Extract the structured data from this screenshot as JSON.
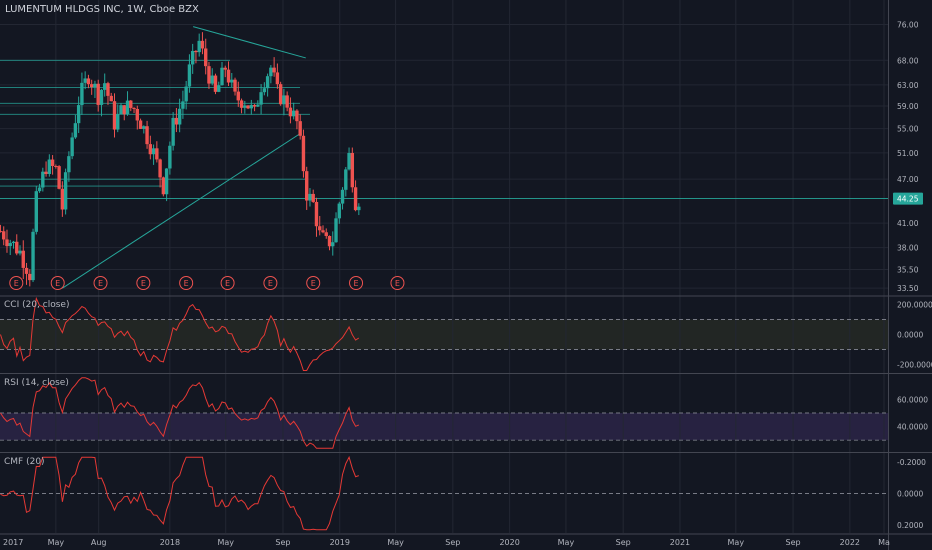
{
  "header": {
    "symbol_title": "LUMENTUM HLDGS INC, 1W, Cboe BZX"
  },
  "colors": {
    "background": "#131722",
    "grid": "#232733",
    "up": "#26a69a",
    "down": "#ef5350",
    "indicator_line": "#e53935",
    "trendline": "#26a69a",
    "price_tag": "#26a69a",
    "cci_band": "#2a2e25",
    "rsi_band": "#2a2445"
  },
  "price_axis": {
    "labels": [
      "76.00",
      "68.00",
      "63.00",
      "59.00",
      "55.00",
      "51.00",
      "47.00",
      "44.25",
      "41.00",
      "38.00",
      "35.50",
      "33.50"
    ],
    "current_price": "44.25"
  },
  "time_axis": {
    "labels": [
      "2017",
      "May",
      "Aug",
      "2018",
      "May",
      "Sep",
      "2019",
      "May",
      "Sep",
      "2020",
      "May",
      "Sep",
      "2021",
      "May",
      "Sep",
      "2022",
      "Ma"
    ]
  },
  "events": {
    "marker": "E",
    "count": 10
  },
  "panes": [
    {
      "name": "cci",
      "label": "CCI (20, close)",
      "axis": [
        "200.0000",
        "0.0000",
        "-200.0000"
      ]
    },
    {
      "name": "rsi",
      "label": "RSI (14, close)",
      "axis": [
        "60.0000",
        "40.0000"
      ]
    },
    {
      "name": "cmf",
      "label": "CMF (20)",
      "axis": [
        "-0.2000",
        "0.0000",
        "0.2000"
      ]
    }
  ],
  "chart_data": {
    "type": "candlestick",
    "title": "LUMENTUM HLDGS INC, 1W, Cboe BZX",
    "interval": "1W",
    "x_range": [
      "2017-01",
      "2022-03"
    ],
    "y_scale": "log",
    "ylim": [
      33,
      80
    ],
    "last_close": 44.25,
    "x_ticks": [
      "2017",
      "May",
      "Aug",
      "2018",
      "May",
      "Sep",
      "2019",
      "May",
      "Sep",
      "2020",
      "May",
      "Sep",
      "2021",
      "May",
      "Sep",
      "2022",
      "Ma"
    ],
    "y_ticks": [
      76.0,
      68.0,
      63.0,
      59.0,
      55.0,
      51.0,
      47.0,
      44.25,
      41.0,
      38.0,
      35.5,
      33.5
    ],
    "anchors": [
      [
        "2017-01-02",
        40.0
      ],
      [
        "2017-02-13",
        37.5
      ],
      [
        "2017-03-06",
        35.0
      ],
      [
        "2017-03-20",
        44.0
      ],
      [
        "2017-04-10",
        49.0
      ],
      [
        "2017-05-01",
        48.5
      ],
      [
        "2017-05-15",
        43.0
      ],
      [
        "2017-05-29",
        50.5
      ],
      [
        "2017-06-19",
        60.0
      ],
      [
        "2017-07-10",
        65.0
      ],
      [
        "2017-07-31",
        61.0
      ],
      [
        "2017-08-14",
        63.5
      ],
      [
        "2017-09-04",
        56.0
      ],
      [
        "2017-09-25",
        59.0
      ],
      [
        "2017-10-16",
        58.5
      ],
      [
        "2017-11-06",
        55.0
      ],
      [
        "2017-11-27",
        51.0
      ],
      [
        "2017-12-18",
        46.0
      ],
      [
        "2018-01-08",
        55.5
      ],
      [
        "2018-01-29",
        60.0
      ],
      [
        "2018-02-12",
        66.0
      ],
      [
        "2018-03-05",
        72.0
      ],
      [
        "2018-03-19",
        67.0
      ],
      [
        "2018-04-09",
        61.0
      ],
      [
        "2018-04-30",
        66.5
      ],
      [
        "2018-05-21",
        60.5
      ],
      [
        "2018-06-11",
        60.0
      ],
      [
        "2018-07-02",
        57.5
      ],
      [
        "2018-07-16",
        63.0
      ],
      [
        "2018-08-06",
        66.5
      ],
      [
        "2018-08-20",
        61.5
      ],
      [
        "2018-09-10",
        59.5
      ],
      [
        "2018-10-01",
        56.0
      ],
      [
        "2018-10-22",
        45.0
      ],
      [
        "2018-11-05",
        43.5
      ],
      [
        "2018-11-19",
        39.5
      ],
      [
        "2018-12-03",
        38.5
      ],
      [
        "2018-12-17",
        39.0
      ],
      [
        "2019-01-07",
        46.0
      ],
      [
        "2019-01-21",
        50.5
      ],
      [
        "2019-02-04",
        44.0
      ],
      [
        "2019-02-11",
        44.25
      ]
    ],
    "indicators": {
      "cci": {
        "name": "CCI (20, close)",
        "ylim": [
          -250,
          250
        ],
        "levels": [
          100,
          -100
        ],
        "ticks": [
          200,
          0,
          -200
        ]
      },
      "rsi": {
        "name": "RSI (14, close)",
        "ylim": [
          22,
          78
        ],
        "levels": [
          70,
          30
        ],
        "ticks": [
          60,
          40
        ]
      },
      "cmf": {
        "name": "CMF (20)",
        "ylim": [
          -0.25,
          0.25
        ],
        "inverted": true,
        "ticks": [
          -0.2,
          0,
          0.2
        ]
      }
    }
  }
}
